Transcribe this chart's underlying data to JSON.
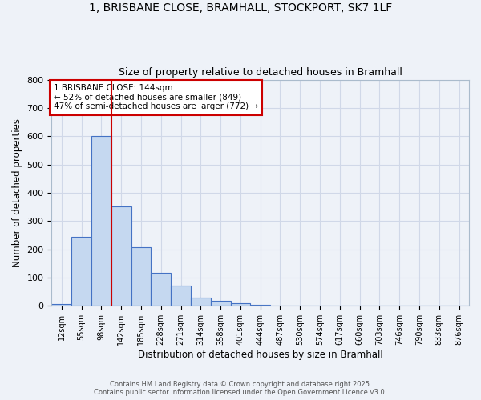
{
  "title_line1": "1, BRISBANE CLOSE, BRAMHALL, STOCKPORT, SK7 1LF",
  "title_line2": "Size of property relative to detached houses in Bramhall",
  "bar_labels": [
    "12sqm",
    "55sqm",
    "98sqm",
    "142sqm",
    "185sqm",
    "228sqm",
    "271sqm",
    "314sqm",
    "358sqm",
    "401sqm",
    "444sqm",
    "487sqm",
    "530sqm",
    "574sqm",
    "617sqm",
    "660sqm",
    "703sqm",
    "746sqm",
    "790sqm",
    "833sqm",
    "876sqm"
  ],
  "bar_values": [
    8,
    243,
    600,
    352,
    207,
    117,
    72,
    28,
    18,
    10,
    5,
    1,
    0,
    0,
    0,
    0,
    0,
    0,
    0,
    0,
    0
  ],
  "bar_color": "#c5d8f0",
  "bar_edge_color": "#4472c4",
  "ylabel": "Number of detached properties",
  "xlabel": "Distribution of detached houses by size in Bramhall",
  "ylim": [
    0,
    800
  ],
  "yticks": [
    0,
    100,
    200,
    300,
    400,
    500,
    600,
    700,
    800
  ],
  "vline_color": "#cc0000",
  "annotation_text": "1 BRISBANE CLOSE: 144sqm\n← 52% of detached houses are smaller (849)\n47% of semi-detached houses are larger (772) →",
  "annotation_box_color": "#ffffff",
  "annotation_edge_color": "#cc0000",
  "grid_color": "#d0d8e8",
  "background_color": "#eef2f8",
  "footer_line1": "Contains HM Land Registry data © Crown copyright and database right 2025.",
  "footer_line2": "Contains public sector information licensed under the Open Government Licence v3.0."
}
